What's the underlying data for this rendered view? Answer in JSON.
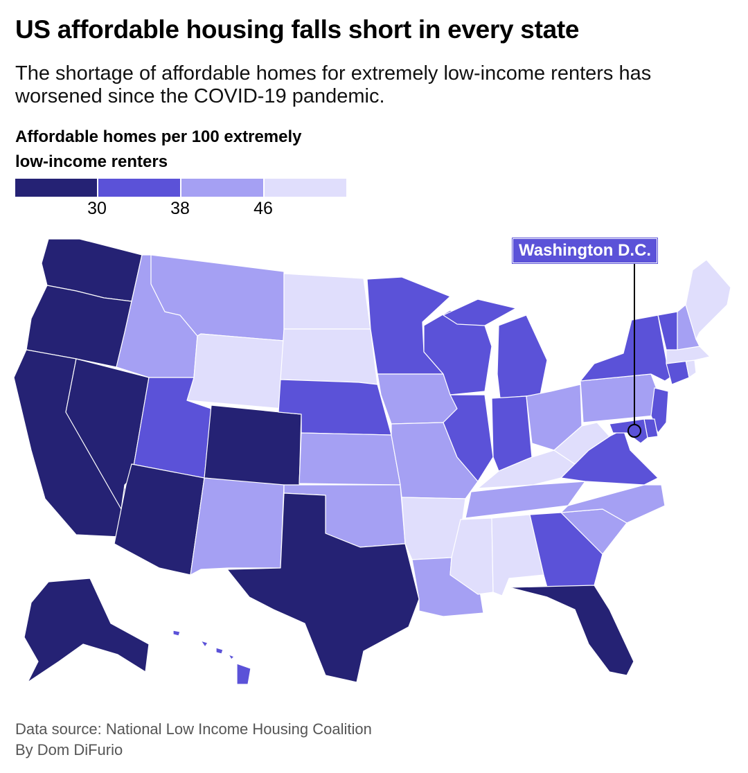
{
  "header": {
    "title": "US affordable housing falls short in every state",
    "subtitle": "The shortage of affordable homes for extremely low-income renters has worsened since the COVID-19 pandemic."
  },
  "legend": {
    "title": "Affordable homes per 100 extremely low-income renters",
    "colors": [
      "#252274",
      "#5b52d8",
      "#a5a0f3",
      "#e0defc"
    ],
    "ticks": [
      "30",
      "38",
      "46"
    ]
  },
  "map": {
    "annotation": "Washington D.C.",
    "bins": {
      "under_30": [
        "WA",
        "OR",
        "CA",
        "NV",
        "AZ",
        "CO",
        "TX",
        "FL",
        "AK"
      ],
      "30_to_38": [
        "UT",
        "NE",
        "MN",
        "WI",
        "IL",
        "IN",
        "MI",
        "GA",
        "VA",
        "NY",
        "VT",
        "NJ",
        "MD",
        "DE",
        "CT",
        "HI",
        "DC"
      ],
      "38_to_46": [
        "ID",
        "MT",
        "NM",
        "KS",
        "OK",
        "IA",
        "MO",
        "LA",
        "TN",
        "OH",
        "PA",
        "NC",
        "SC",
        "NH"
      ],
      "over_46": [
        "WY",
        "ND",
        "SD",
        "AR",
        "MS",
        "AL",
        "KY",
        "WV",
        "ME",
        "MA",
        "RI"
      ]
    }
  },
  "footer": {
    "source": "Data source: National Low Income Housing Coalition",
    "byline": "By Dom DiFurio"
  }
}
